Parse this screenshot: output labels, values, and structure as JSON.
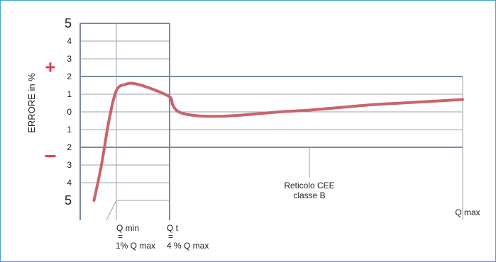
{
  "chart_data": {
    "type": "line",
    "ylabel": "ERRORE in %",
    "plus_sign": "+",
    "minus_sign": "–",
    "y_ticks": [
      {
        "label": "5",
        "big": true
      },
      {
        "label": "4",
        "big": false
      },
      {
        "label": "3",
        "big": false
      },
      {
        "label": "2",
        "big": false
      },
      {
        "label": "1",
        "big": false
      },
      {
        "label": "0",
        "big": false
      },
      {
        "label": "1",
        "big": false
      },
      {
        "label": "2",
        "big": false
      },
      {
        "label": "3",
        "big": false
      },
      {
        "label": "4",
        "big": false
      },
      {
        "label": "5",
        "big": true
      }
    ],
    "y_range": [
      -5,
      5
    ],
    "x_range": [
      0,
      100
    ],
    "q_min": {
      "lines": [
        "Q min",
        "=",
        "1% Q max"
      ],
      "x": 1
    },
    "q_t": {
      "lines": [
        "Q t",
        "=",
        "4 % Q max"
      ],
      "x": 4
    },
    "q_max": {
      "label": "Q max",
      "x": 100
    },
    "envelope": [
      {
        "x_from": 0,
        "x_to": 4,
        "lower": -5,
        "upper": 5
      },
      {
        "x_from": 4,
        "x_to": 100,
        "lower": -2,
        "upper": 2
      }
    ],
    "envelope_label": [
      "Reticolo CEE",
      "classe B"
    ],
    "series": [
      {
        "color": "#c9646b",
        "points": [
          [
            0.25,
            -5.0
          ],
          [
            0.5,
            -3.0
          ],
          [
            0.75,
            -0.5
          ],
          [
            1.0,
            1.2
          ],
          [
            1.5,
            1.55
          ],
          [
            2.0,
            1.6
          ],
          [
            3.0,
            1.3
          ],
          [
            4.0,
            0.85
          ],
          [
            5.0,
            0.4
          ],
          [
            7.0,
            0.0
          ],
          [
            12.0,
            -0.2
          ],
          [
            20.0,
            -0.25
          ],
          [
            30.0,
            -0.15
          ],
          [
            40.0,
            0.0
          ],
          [
            50.0,
            0.1
          ],
          [
            60.0,
            0.25
          ],
          [
            70.0,
            0.4
          ],
          [
            80.0,
            0.5
          ],
          [
            90.0,
            0.6
          ],
          [
            100.0,
            0.7
          ]
        ]
      }
    ],
    "colors": {
      "envelope": "#7c8a9c",
      "grid": "#9aa3ae",
      "plus_minus": "#e03a4d",
      "series": "#c9646b"
    }
  }
}
